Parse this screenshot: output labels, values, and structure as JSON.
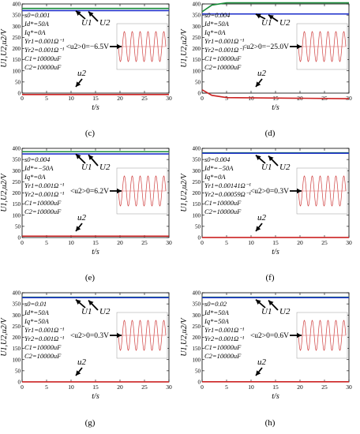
{
  "colors": {
    "u1": "#1a8c3a",
    "u2": "#2233cc",
    "lower": "#cc2222",
    "inset": "#d04040"
  },
  "common": {
    "xlabel": "t/s",
    "ylabel": "U1,U2,u2/V",
    "u1_label": "U1",
    "u2_label": "U2",
    "lower_label": "u2"
  },
  "chart_data": [
    {
      "type": "line",
      "caption": "(c)",
      "xlim": [
        0,
        30
      ],
      "ylim": [
        0,
        400
      ],
      "x_ticks": [
        0,
        5,
        10,
        15,
        20,
        25,
        30
      ],
      "y_ticks": [
        0,
        50,
        100,
        150,
        200,
        250,
        300,
        350,
        400
      ],
      "params": [
        "s0=0.001",
        "Id*=50A",
        "Iq*=0A",
        "Yr1=0.001Ω⁻¹",
        "Yr2=0.001Ω⁻¹",
        "C1=10000uF",
        "C2=10000uF"
      ],
      "avg_label": "<u2>0=−6.5V",
      "series": [
        {
          "name": "U1",
          "x": [
            0,
            30
          ],
          "y": [
            380,
            380
          ]
        },
        {
          "name": "U2",
          "x": [
            0,
            30
          ],
          "y": [
            370,
            370
          ]
        },
        {
          "name": "u2",
          "x": [
            0,
            30
          ],
          "y": [
            -6.5,
            -6.5
          ]
        }
      ]
    },
    {
      "type": "line",
      "caption": "(d)",
      "xlim": [
        0,
        30
      ],
      "ylim": [
        0,
        400
      ],
      "x_ticks": [
        0,
        5,
        10,
        15,
        20,
        25,
        30
      ],
      "y_ticks": [
        0,
        50,
        100,
        150,
        200,
        250,
        300,
        350,
        400
      ],
      "params": [
        "s0=0.004",
        "Id*=50A",
        "Iq*=0A",
        "Yr1=0.001Ω⁻¹",
        "Yr2=0.001Ω⁻¹",
        "C1=10000uF",
        "C2=10000uF"
      ],
      "avg_label": "<u2>0=−25.0V",
      "series": [
        {
          "name": "U1",
          "x": [
            0,
            2,
            5,
            30
          ],
          "y": [
            365,
            395,
            405,
            405
          ]
        },
        {
          "name": "U2",
          "x": [
            0,
            30
          ],
          "y": [
            355,
            355
          ]
        },
        {
          "name": "u2",
          "x": [
            0,
            2,
            5,
            30
          ],
          "y": [
            15,
            -10,
            -20,
            -25
          ]
        }
      ]
    },
    {
      "type": "line",
      "caption": "(e)",
      "xlim": [
        0,
        30
      ],
      "ylim": [
        0,
        400
      ],
      "x_ticks": [
        0,
        5,
        10,
        15,
        20,
        25,
        30
      ],
      "y_ticks": [
        0,
        50,
        100,
        150,
        200,
        250,
        300,
        350,
        400
      ],
      "params": [
        "s0=0.004",
        "Id*=−50A",
        "Iq*=0A",
        "Yr1=0.001Ω⁻¹",
        "Yr2=0.001Ω⁻¹",
        "C1=10000uF",
        "C2=10000uF"
      ],
      "avg_label": "<u2>0=6.2V",
      "series": [
        {
          "name": "U1",
          "x": [
            0,
            30
          ],
          "y": [
            385,
            385
          ]
        },
        {
          "name": "U2",
          "x": [
            0,
            30
          ],
          "y": [
            375,
            375
          ]
        },
        {
          "name": "u2",
          "x": [
            0,
            30
          ],
          "y": [
            6.2,
            6.2
          ]
        }
      ]
    },
    {
      "type": "line",
      "caption": "(f)",
      "xlim": [
        0,
        30
      ],
      "ylim": [
        0,
        400
      ],
      "x_ticks": [
        0,
        5,
        10,
        15,
        20,
        25,
        30
      ],
      "y_ticks": [
        0,
        50,
        100,
        150,
        200,
        250,
        300,
        350,
        400
      ],
      "params": [
        "s0=0.004",
        "Id*=−50A",
        "Iq*=0A",
        "Yr1=0.00141Ω⁻¹",
        "Yr2=0.00059Ω⁻¹",
        "C1=10000uF",
        "C2=10000uF"
      ],
      "avg_label": "<u2>0=0.3V",
      "series": [
        {
          "name": "U1",
          "x": [
            0,
            30
          ],
          "y": [
            380,
            380
          ]
        },
        {
          "name": "U2",
          "x": [
            0,
            30
          ],
          "y": [
            378,
            378
          ]
        },
        {
          "name": "u2",
          "x": [
            0,
            30
          ],
          "y": [
            0.3,
            0.3
          ]
        }
      ]
    },
    {
      "type": "line",
      "caption": "(g)",
      "xlim": [
        0,
        30
      ],
      "ylim": [
        0,
        400
      ],
      "x_ticks": [
        0,
        5,
        10,
        15,
        20,
        25,
        30
      ],
      "y_ticks": [
        0,
        50,
        100,
        150,
        200,
        250,
        300,
        350,
        400
      ],
      "params": [
        "s0=0.01",
        "Id*=50A",
        "Iq*=50A",
        "Yr1=0.001Ω⁻¹",
        "Yr2=0.001Ω⁻¹",
        "C1=10000uF",
        "C2=10000uF"
      ],
      "avg_label": "<u2>0=0.3V",
      "series": [
        {
          "name": "U1",
          "x": [
            0,
            30
          ],
          "y": [
            380,
            380
          ]
        },
        {
          "name": "U2",
          "x": [
            0,
            30
          ],
          "y": [
            378,
            378
          ]
        },
        {
          "name": "u2",
          "x": [
            0,
            30
          ],
          "y": [
            0.3,
            0.3
          ]
        }
      ]
    },
    {
      "type": "line",
      "caption": "(h)",
      "xlim": [
        0,
        30
      ],
      "ylim": [
        0,
        400
      ],
      "x_ticks": [
        0,
        5,
        10,
        15,
        20,
        25,
        30
      ],
      "y_ticks": [
        0,
        50,
        100,
        150,
        200,
        250,
        300,
        350,
        400
      ],
      "params": [
        "s0=0.02",
        "Id*=50A",
        "Iq*=50A",
        "Yr1=0.001Ω⁻¹",
        "Yr2=0.001Ω⁻¹",
        "C1=10000uF",
        "C2=10000uF"
      ],
      "avg_label": "<u2>0=0.6V",
      "series": [
        {
          "name": "U1",
          "x": [
            0,
            30
          ],
          "y": [
            380,
            380
          ]
        },
        {
          "name": "U2",
          "x": [
            0,
            30
          ],
          "y": [
            378,
            378
          ]
        },
        {
          "name": "u2",
          "x": [
            0,
            30
          ],
          "y": [
            0.6,
            0.6
          ]
        }
      ]
    }
  ]
}
